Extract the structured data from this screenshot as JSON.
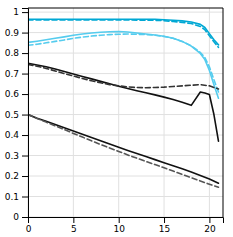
{
  "chart_data": {
    "type": "line",
    "xlim": [
      0,
      21.5
    ],
    "ylim": [
      0,
      1.02
    ],
    "xticks": [
      0,
      5,
      10,
      15,
      20
    ],
    "yticks": [
      0,
      0.1,
      0.2,
      0.3,
      0.4,
      0.5,
      0.6,
      0.7,
      0.8,
      0.9,
      1
    ],
    "grid": true,
    "series": [
      {
        "color": "#00a8d4",
        "line_style": "solid",
        "x": [
          0,
          2,
          4,
          6,
          8,
          10,
          12,
          14,
          15,
          16,
          17,
          18,
          19,
          19.5,
          20,
          20.5,
          21
        ],
        "values": [
          0.965,
          0.965,
          0.965,
          0.965,
          0.965,
          0.965,
          0.965,
          0.965,
          0.963,
          0.96,
          0.957,
          0.952,
          0.94,
          0.925,
          0.895,
          0.865,
          0.84
        ]
      },
      {
        "color": "#00a8d4",
        "line_style": "dashed",
        "x": [
          0,
          2,
          4,
          6,
          8,
          10,
          12,
          14,
          15,
          16,
          17,
          18,
          19,
          19.5,
          20,
          20.5,
          21
        ],
        "values": [
          0.962,
          0.962,
          0.962,
          0.962,
          0.962,
          0.962,
          0.961,
          0.96,
          0.958,
          0.954,
          0.95,
          0.944,
          0.93,
          0.914,
          0.884,
          0.855,
          0.828
        ]
      },
      {
        "color": "#55ccee",
        "line_style": "solid",
        "x": [
          0,
          1,
          2,
          3,
          4,
          5,
          6,
          7,
          8,
          9,
          10,
          11,
          12,
          13,
          14,
          15,
          16,
          17,
          18,
          19,
          19.5,
          20,
          20.5,
          21
        ],
        "values": [
          0.852,
          0.858,
          0.865,
          0.872,
          0.879,
          0.887,
          0.893,
          0.898,
          0.902,
          0.904,
          0.905,
          0.903,
          0.898,
          0.893,
          0.888,
          0.882,
          0.872,
          0.857,
          0.834,
          0.798,
          0.768,
          0.715,
          0.645,
          0.58
        ]
      },
      {
        "color": "#55ccee",
        "line_style": "dashed",
        "x": [
          0,
          1,
          2,
          3,
          4,
          5,
          6,
          7,
          8,
          9,
          10,
          11,
          12,
          13,
          14,
          15,
          16,
          17,
          18,
          19,
          19.5,
          20,
          20.5,
          21
        ],
        "values": [
          0.838,
          0.843,
          0.85,
          0.857,
          0.864,
          0.872,
          0.878,
          0.883,
          0.887,
          0.89,
          0.892,
          0.893,
          0.892,
          0.89,
          0.887,
          0.881,
          0.872,
          0.857,
          0.836,
          0.803,
          0.778,
          0.733,
          0.67,
          0.61
        ]
      },
      {
        "color": "#111111",
        "line_style": "solid",
        "x": [
          0,
          1,
          2,
          3,
          4,
          5,
          6,
          7,
          8,
          9,
          10,
          11,
          12,
          13,
          14,
          15,
          16,
          17,
          18,
          19,
          19.5,
          20,
          20.5,
          21
        ],
        "values": [
          0.75,
          0.742,
          0.733,
          0.722,
          0.71,
          0.698,
          0.686,
          0.674,
          0.662,
          0.65,
          0.638,
          0.627,
          0.616,
          0.606,
          0.596,
          0.585,
          0.573,
          0.56,
          0.545,
          0.61,
          0.605,
          0.598,
          0.5,
          0.37
        ]
      },
      {
        "color": "#333333",
        "line_style": "dashed",
        "x": [
          0,
          1,
          2,
          3,
          4,
          5,
          6,
          7,
          8,
          9,
          10,
          11,
          12,
          13,
          14,
          15,
          16,
          17,
          18,
          19,
          20,
          21
        ],
        "values": [
          0.745,
          0.736,
          0.725,
          0.713,
          0.7,
          0.688,
          0.676,
          0.665,
          0.655,
          0.646,
          0.64,
          0.635,
          0.632,
          0.631,
          0.632,
          0.634,
          0.637,
          0.64,
          0.643,
          0.646,
          0.64,
          0.625
        ]
      },
      {
        "color": "#111111",
        "line_style": "solid",
        "x": [
          0,
          1,
          2,
          3,
          4,
          5,
          6,
          7,
          8,
          9,
          10,
          11,
          12,
          13,
          14,
          15,
          16,
          17,
          18,
          19,
          20,
          21
        ],
        "values": [
          0.5,
          0.482,
          0.467,
          0.452,
          0.436,
          0.42,
          0.404,
          0.388,
          0.372,
          0.356,
          0.34,
          0.325,
          0.31,
          0.295,
          0.28,
          0.265,
          0.25,
          0.235,
          0.22,
          0.203,
          0.185,
          0.165
        ]
      },
      {
        "color": "#555555",
        "line_style": "dashed",
        "x": [
          0,
          1,
          2,
          3,
          4,
          5,
          6,
          7,
          8,
          9,
          10,
          11,
          12,
          13,
          14,
          15,
          16,
          17,
          18,
          19,
          20,
          21
        ],
        "values": [
          0.5,
          0.481,
          0.463,
          0.445,
          0.427,
          0.408,
          0.39,
          0.372,
          0.354,
          0.337,
          0.32,
          0.303,
          0.287,
          0.271,
          0.256,
          0.24,
          0.224,
          0.208,
          0.192,
          0.176,
          0.16,
          0.145
        ]
      }
    ]
  }
}
